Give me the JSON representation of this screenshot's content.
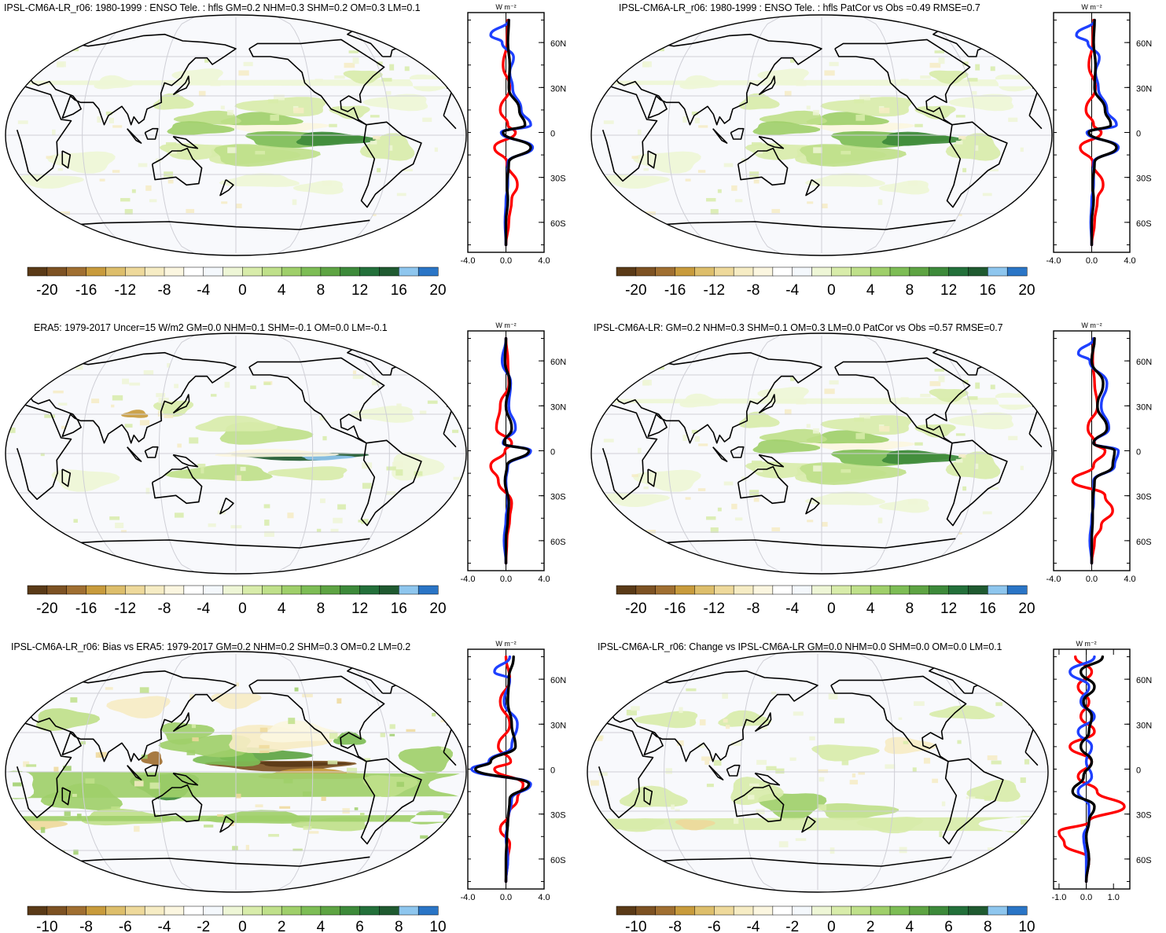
{
  "colorbar": {
    "colors": [
      "#5a3a17",
      "#7d5223",
      "#a06f31",
      "#c89b3c",
      "#ddbe6b",
      "#eed99b",
      "#f6ecc4",
      "#fbf6e0",
      "#ffffff",
      "#f4f8fc",
      "#eef6d6",
      "#d8ecaa",
      "#bfe08a",
      "#9fcf6a",
      "#7dbd55",
      "#5ea443",
      "#3d8a3a",
      "#23703a",
      "#1f5a30",
      "#8ec6ee",
      "#2a75c6"
    ],
    "labels_wide": [
      "-20",
      "-16",
      "-12",
      "-8",
      "-4",
      "0",
      "4",
      "8",
      "12",
      "16",
      "20"
    ],
    "labels_narrow": [
      "-10",
      "-8",
      "-6",
      "-4",
      "-2",
      "0",
      "2",
      "4",
      "6",
      "8",
      "10"
    ]
  },
  "zonal_axis": {
    "lat_labels": [
      "60N",
      "30N",
      "0",
      "30S",
      "60S"
    ],
    "unit_label": "W m⁻²"
  },
  "panels": [
    {
      "id": "p1",
      "title": "IPSL-CM6A-LR_r06: 1980-1999 : ENSO Tele. : hfls GM=0.2 NHM=0.3 SHM=0.2 OM=0.3 LM=0.1",
      "xticks": [
        "-4.0",
        "0.0",
        "4.0"
      ],
      "cb": "wide"
    },
    {
      "id": "p2",
      "title": "IPSL-CM6A-LR_r06: 1980-1999 : ENSO Tele. : hfls PatCor vs Obs =0.49 RMSE=0.7",
      "xticks": [
        "-4.0",
        "0.0",
        "4.0"
      ],
      "cb": "wide"
    },
    {
      "id": "p3",
      "title": "ERA5: 1979-2017 Uncer=15 W/m2 GM=0.0 NHM=0.1 SHM=-0.1 OM=0.0 LM=-0.1",
      "xticks": [
        "-4.0",
        "0.0",
        "4.0"
      ],
      "cb": "wide"
    },
    {
      "id": "p4",
      "title": "IPSL-CM6A-LR: GM=0.2 NHM=0.3 SHM=0.1 OM=0.3 LM=0.0 PatCor vs Obs =0.57 RMSE=0.7",
      "xticks": [
        "-4.0",
        "0.0",
        "4.0"
      ],
      "cb": "wide"
    },
    {
      "id": "p5",
      "title": "IPSL-CM6A-LR_r06: Bias vs ERA5: 1979-2017 GM=0.2 NHM=0.2 SHM=0.3 OM=0.2 LM=0.2",
      "xticks": [
        "-4.0",
        "0.0",
        "4.0"
      ],
      "cb": "narrow"
    },
    {
      "id": "p6",
      "title": "IPSL-CM6A-LR_r06: Change vs IPSL-CM6A-LR GM=0.0 NHM=0.0 SHM=0.0 OM=0.0 LM=0.1",
      "xticks": [
        "-1.0",
        "0.0",
        "1.0"
      ],
      "cb": "narrow"
    }
  ],
  "chart_data": [
    {
      "type": "line",
      "title": "IPSL-CM6A-LR_r06: 1980-1999 : ENSO Tele. : hfls GM=0.2 NHM=0.3 SHM=0.2 OM=0.3 LM=0.1",
      "ylabel_ticks": [
        "60N",
        "30N",
        "0",
        "30S",
        "60S"
      ],
      "xlim": [
        -4,
        4
      ],
      "ylim": [
        -80,
        80
      ],
      "series": [
        {
          "color": "#ff0000",
          "lat": [
            75,
            60,
            45,
            30,
            15,
            5,
            0,
            -10,
            -20,
            -35,
            -45,
            -60,
            -75
          ],
          "values": [
            0.2,
            0.1,
            -0.3,
            0.4,
            -0.6,
            0.2,
            1.0,
            -1.2,
            0.1,
            1.2,
            0.6,
            0.3,
            0.0
          ]
        },
        {
          "color": "#1e40ff",
          "lat": [
            75,
            65,
            60,
            50,
            40,
            30,
            15,
            5,
            0,
            -10,
            -20,
            -35,
            -45,
            -60,
            -75
          ],
          "values": [
            0.3,
            -1.6,
            -0.4,
            0.8,
            0.4,
            0.7,
            1.6,
            2.6,
            -0.5,
            2.8,
            0.2,
            0.2,
            0.0,
            -0.1,
            0.0
          ]
        },
        {
          "color": "#000000",
          "lat": [
            75,
            60,
            45,
            30,
            15,
            5,
            0,
            -10,
            -20,
            -35,
            -45,
            -60,
            -75
          ],
          "values": [
            0.3,
            0.2,
            0.4,
            0.3,
            1.4,
            2.0,
            -0.3,
            2.6,
            0.3,
            0.1,
            0.2,
            0.0,
            0.0
          ]
        }
      ]
    },
    {
      "type": "line",
      "title": "IPSL-CM6A-LR_r06: 1980-1999 : ENSO Tele. : hfls PatCor vs Obs =0.49 RMSE=0.7",
      "ylabel_ticks": [
        "60N",
        "30N",
        "0",
        "30S",
        "60S"
      ],
      "xlim": [
        -4,
        4
      ],
      "ylim": [
        -80,
        80
      ],
      "series": [
        {
          "color": "#ff0000",
          "lat": [
            75,
            60,
            45,
            30,
            15,
            5,
            0,
            -10,
            -20,
            -35,
            -45,
            -60,
            -75
          ],
          "values": [
            0.2,
            0.1,
            -0.3,
            0.4,
            -0.6,
            0.2,
            1.0,
            -1.2,
            0.1,
            1.2,
            0.6,
            0.3,
            0.0
          ]
        },
        {
          "color": "#1e40ff",
          "lat": [
            75,
            65,
            60,
            50,
            40,
            30,
            15,
            5,
            0,
            -10,
            -20,
            -35,
            -45,
            -60,
            -75
          ],
          "values": [
            0.3,
            -1.6,
            -0.4,
            0.8,
            0.4,
            0.7,
            1.6,
            2.6,
            -0.5,
            2.8,
            0.2,
            0.2,
            0.0,
            -0.1,
            0.0
          ]
        },
        {
          "color": "#000000",
          "lat": [
            75,
            60,
            45,
            30,
            15,
            5,
            0,
            -10,
            -20,
            -35,
            -45,
            -60,
            -75
          ],
          "values": [
            0.3,
            0.2,
            0.4,
            0.3,
            1.4,
            2.0,
            -0.3,
            2.6,
            0.3,
            0.1,
            0.2,
            0.0,
            0.0
          ]
        }
      ]
    },
    {
      "type": "line",
      "title": "ERA5: 1979-2017 Uncer=15 W/m2 GM=0.0 NHM=0.1 SHM=-0.1 OM=0.0 LM=-0.1",
      "ylabel_ticks": [
        "60N",
        "30N",
        "0",
        "30S",
        "60S"
      ],
      "xlim": [
        -4,
        4
      ],
      "ylim": [
        -80,
        80
      ],
      "series": [
        {
          "color": "#ff0000",
          "lat": [
            75,
            60,
            45,
            30,
            15,
            5,
            0,
            -10,
            -20,
            -35,
            -45,
            -60,
            -75
          ],
          "values": [
            0.0,
            0.2,
            0.3,
            -0.6,
            -1.0,
            0.6,
            -0.1,
            -1.6,
            -0.8,
            0.6,
            0.4,
            0.1,
            0.0
          ]
        },
        {
          "color": "#1e40ff",
          "lat": [
            75,
            60,
            45,
            30,
            15,
            5,
            0,
            -10,
            -20,
            -35,
            -45,
            -60,
            -75
          ],
          "values": [
            0.0,
            -0.4,
            0.5,
            0.3,
            1.0,
            -0.3,
            2.6,
            0.2,
            0.0,
            0.2,
            0.0,
            -0.2,
            0.0
          ]
        },
        {
          "color": "#000000",
          "lat": [
            75,
            60,
            45,
            30,
            15,
            5,
            0,
            -10,
            -20,
            -35,
            -45,
            -60,
            -75
          ],
          "values": [
            0.0,
            -0.1,
            0.4,
            0.0,
            0.6,
            -0.2,
            2.4,
            0.1,
            -0.1,
            0.3,
            0.2,
            0.0,
            0.0
          ]
        }
      ]
    },
    {
      "type": "line",
      "title": "IPSL-CM6A-LR: GM=0.2 NHM=0.3 SHM=0.1 OM=0.3 LM=0.0 PatCor vs Obs =0.57 RMSE=0.7",
      "ylabel_ticks": [
        "60N",
        "30N",
        "0",
        "30S",
        "60S"
      ],
      "xlim": [
        -4,
        4
      ],
      "ylim": [
        -80,
        80
      ],
      "series": [
        {
          "color": "#ff0000",
          "lat": [
            75,
            60,
            45,
            30,
            15,
            5,
            0,
            -10,
            -20,
            -30,
            -40,
            -50,
            -60,
            -75
          ],
          "values": [
            0.2,
            0.1,
            0.3,
            0.6,
            -0.4,
            0.3,
            1.4,
            0.2,
            -2.0,
            1.4,
            2.2,
            1.0,
            0.3,
            0.0
          ]
        },
        {
          "color": "#1e40ff",
          "lat": [
            75,
            65,
            60,
            45,
            30,
            15,
            5,
            0,
            -10,
            -20,
            -35,
            -45,
            -60,
            -75
          ],
          "values": [
            0.2,
            -1.4,
            -0.2,
            1.6,
            1.0,
            1.8,
            0.2,
            2.8,
            2.4,
            0.2,
            0.2,
            0.0,
            -0.2,
            0.0
          ]
        },
        {
          "color": "#000000",
          "lat": [
            75,
            60,
            45,
            30,
            15,
            5,
            0,
            -10,
            -20,
            -35,
            -45,
            -60,
            -75
          ],
          "values": [
            0.3,
            0.0,
            1.2,
            0.6,
            1.6,
            0.2,
            2.4,
            2.2,
            0.3,
            0.1,
            0.1,
            0.0,
            0.0
          ]
        }
      ]
    },
    {
      "type": "line",
      "title": "IPSL-CM6A-LR_r06: Bias vs ERA5: 1979-2017 GM=0.2 NHM=0.2 SHM=0.3 OM=0.2 LM=0.2",
      "ylabel_ticks": [
        "60N",
        "30N",
        "0",
        "30S",
        "60S"
      ],
      "xlim": [
        -4,
        4
      ],
      "ylim": [
        -80,
        80
      ],
      "series": [
        {
          "color": "#ff0000",
          "lat": [
            75,
            60,
            45,
            30,
            15,
            5,
            0,
            -10,
            -20,
            -30,
            -40,
            -50,
            -60,
            -75
          ],
          "values": [
            0.0,
            0.4,
            -0.6,
            0.4,
            -0.8,
            0.5,
            -1.2,
            1.8,
            1.2,
            0.3,
            -0.6,
            0.4,
            0.2,
            0.0
          ]
        },
        {
          "color": "#1e40ff",
          "lat": [
            75,
            65,
            60,
            45,
            30,
            15,
            5,
            0,
            -10,
            -20,
            -35,
            -45,
            -60,
            -75
          ],
          "values": [
            0.4,
            -1.2,
            0.4,
            -0.2,
            1.2,
            0.6,
            -1.8,
            -3.6,
            2.6,
            0.6,
            0.2,
            0.0,
            0.2,
            0.0
          ]
        },
        {
          "color": "#000000",
          "lat": [
            75,
            60,
            45,
            30,
            15,
            5,
            0,
            -10,
            -20,
            -35,
            -45,
            -60,
            -75
          ],
          "values": [
            0.8,
            0.3,
            0.2,
            0.6,
            1.0,
            -1.6,
            -3.2,
            2.4,
            0.4,
            0.2,
            0.1,
            0.0,
            0.0
          ]
        }
      ]
    },
    {
      "type": "line",
      "title": "IPSL-CM6A-LR_r06: Change vs IPSL-CM6A-LR GM=0.0 NHM=0.0 SHM=0.0 OM=0.0 LM=0.1",
      "ylabel_ticks": [
        "60N",
        "30N",
        "0",
        "30S",
        "60S"
      ],
      "xlim": [
        -1.2,
        1.6
      ],
      "ylim": [
        -80,
        80
      ],
      "series": [
        {
          "color": "#ff0000",
          "lat": [
            75,
            65,
            55,
            45,
            35,
            25,
            15,
            5,
            -5,
            -15,
            -25,
            -35,
            -42,
            -50,
            -60,
            -75
          ],
          "values": [
            -0.4,
            0.2,
            -0.3,
            0.1,
            -0.2,
            0.3,
            -0.6,
            0.2,
            -0.3,
            0.4,
            1.4,
            0.1,
            -1.0,
            -0.8,
            0.1,
            0.0
          ]
        },
        {
          "color": "#1e40ff",
          "lat": [
            75,
            65,
            55,
            45,
            35,
            25,
            15,
            5,
            -5,
            -15,
            -25,
            -35,
            -45,
            -60,
            -75
          ],
          "values": [
            0.3,
            -0.6,
            0.1,
            -0.2,
            0.3,
            -0.3,
            0.2,
            0.0,
            0.2,
            -0.3,
            0.1,
            0.1,
            -0.1,
            0.0,
            0.0
          ]
        },
        {
          "color": "#000000",
          "lat": [
            75,
            65,
            55,
            45,
            35,
            25,
            15,
            5,
            -5,
            -15,
            -25,
            -35,
            -45,
            -60,
            -75
          ],
          "values": [
            0.6,
            -0.2,
            0.3,
            -0.1,
            0.2,
            0.1,
            -0.2,
            0.2,
            -0.1,
            -0.5,
            0.3,
            0.1,
            0.0,
            0.1,
            0.0
          ]
        }
      ]
    }
  ]
}
